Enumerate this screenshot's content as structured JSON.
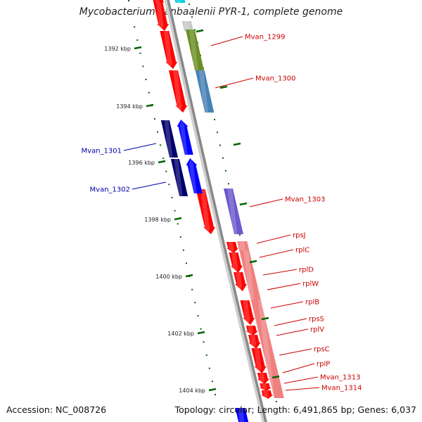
{
  "title": "Mycobacterium vanbaalenii PYR-1, complete genome",
  "accession": "Accession: NC_008726",
  "summary": "Topology: circular; Length: 6,491,865 bp; Genes: 6,037",
  "scale_labels": [
    "1392 kbp",
    "1394 kbp",
    "1396 kbp",
    "1398 kbp",
    "1400 kbp",
    "1402 kbp",
    "1404 kbp"
  ],
  "gene_labels": {
    "Mvan_1299": "Mvan_1299",
    "Mvan_1300": "Mvan_1300",
    "Mvan_1301": "Mvan_1301",
    "Mvan_1302": "Mvan_1302",
    "Mvan_1303": "Mvan_1303",
    "rpsJ": "rpsJ",
    "rplC": "rplC",
    "rplD": "rplD",
    "rplW": "rplW",
    "rplB": "rplB",
    "rpsS": "rpsS",
    "rplV": "rplV",
    "rpsC": "rpsC",
    "rplP": "rplP",
    "Mvan_1313": "Mvan_1313",
    "Mvan_1314": "Mvan_1314"
  },
  "colors": {
    "forward_gene": "#ff0000",
    "reverse_gene": "#0000ff",
    "reverse_dark": "#00006e",
    "olive_feature": "#6b8e23",
    "steelblue_feature": "#4682b4",
    "slateblue_feature": "#6a5acd",
    "salmon_feature": "#f08080",
    "forward_label": "#cc0000",
    "reverse_label": "#0000aa",
    "scale_tick": "#006400",
    "backbone": "#888888"
  }
}
